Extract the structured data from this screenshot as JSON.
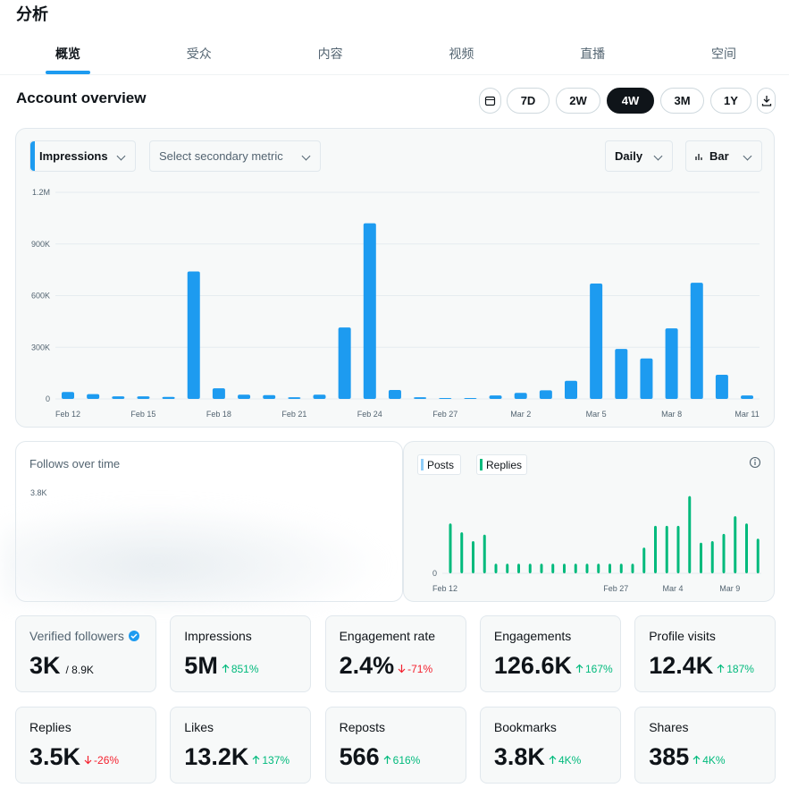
{
  "header": {
    "title": "分析"
  },
  "tabs": [
    "概览",
    "受众",
    "内容",
    "视频",
    "直播",
    "空间"
  ],
  "active_tab": 0,
  "overview": {
    "title": "Account overview",
    "ranges": [
      "7D",
      "2W",
      "4W",
      "3M",
      "1Y"
    ],
    "active_range": 2
  },
  "controls": {
    "metric": "Impressions",
    "secondary": "Select secondary metric",
    "interval": "Daily",
    "chart_style": "Bar"
  },
  "chart_data": [
    {
      "type": "bar",
      "categories": [
        "Feb 12",
        null,
        null,
        "Feb 15",
        null,
        null,
        "Feb 18",
        null,
        null,
        "Feb 21",
        null,
        null,
        "Feb 24",
        null,
        null,
        "Feb 27",
        null,
        null,
        "Mar 2",
        null,
        null,
        "Mar 5",
        null,
        null,
        "Mar 8",
        null,
        null,
        "Mar 11"
      ],
      "values": [
        40000,
        28000,
        15000,
        15000,
        12000,
        740000,
        62000,
        25000,
        22000,
        10000,
        25000,
        415000,
        1020000,
        52000,
        10000,
        5000,
        5000,
        20000,
        35000,
        50000,
        105000,
        670000,
        290000,
        235000,
        410000,
        675000,
        140000,
        20000
      ],
      "color": "#1d9bf0",
      "ylim": [
        0,
        1200000
      ],
      "yticks": [
        0,
        {
          "value": 300000,
          "label": "300K"
        },
        {
          "value": 600000,
          "label": "600K"
        },
        {
          "value": 900000,
          "label": "900K"
        },
        {
          "value": 1200000,
          "label": "1.2M"
        }
      ],
      "grid": true
    },
    {
      "type": "line",
      "title": "Follows over time",
      "yticks": [
        {
          "value": 3800,
          "label": "3.8K"
        }
      ]
    },
    {
      "type": "bar",
      "legend": [
        {
          "name": "Posts",
          "color": "#8ecdf8"
        },
        {
          "name": "Replies",
          "color": "#00ba7c"
        }
      ],
      "categories": [
        "Feb 12",
        null,
        null,
        null,
        null,
        null,
        null,
        null,
        null,
        null,
        null,
        null,
        null,
        null,
        null,
        "Feb 27",
        null,
        null,
        null,
        null,
        "Mar 4",
        null,
        null,
        null,
        null,
        "Mar 9",
        null,
        null
      ],
      "values": [
        62,
        51,
        40,
        48,
        12,
        12,
        12,
        12,
        12,
        12,
        12,
        12,
        12,
        12,
        12,
        12,
        12,
        32,
        59,
        59,
        59,
        96,
        38,
        40,
        49,
        71,
        62,
        43
      ],
      "color": "#00ba7c",
      "ylim": [
        0,
        100
      ],
      "yticks": [
        0
      ]
    }
  ],
  "metrics": [
    {
      "label": "Verified followers",
      "value": "3K",
      "total": "/ 8.9K"
    },
    {
      "label": "Impressions",
      "value": "5M",
      "change": "851%",
      "trend": "up"
    },
    {
      "label": "Engagement rate",
      "value": "2.4%",
      "change": "-71%",
      "trend": "down"
    },
    {
      "label": "Engagements",
      "value": "126.6K",
      "change": "167%",
      "trend": "up"
    },
    {
      "label": "Profile visits",
      "value": "12.4K",
      "change": "187%",
      "trend": "up"
    },
    {
      "label": "Replies",
      "value": "3.5K",
      "change": "-26%",
      "trend": "down"
    },
    {
      "label": "Likes",
      "value": "13.2K",
      "change": "137%",
      "trend": "up"
    },
    {
      "label": "Reposts",
      "value": "566",
      "change": "616%",
      "trend": "up"
    },
    {
      "label": "Bookmarks",
      "value": "3.8K",
      "change": "4K%",
      "trend": "up"
    },
    {
      "label": "Shares",
      "value": "385",
      "change": "4K%",
      "trend": "up"
    }
  ]
}
